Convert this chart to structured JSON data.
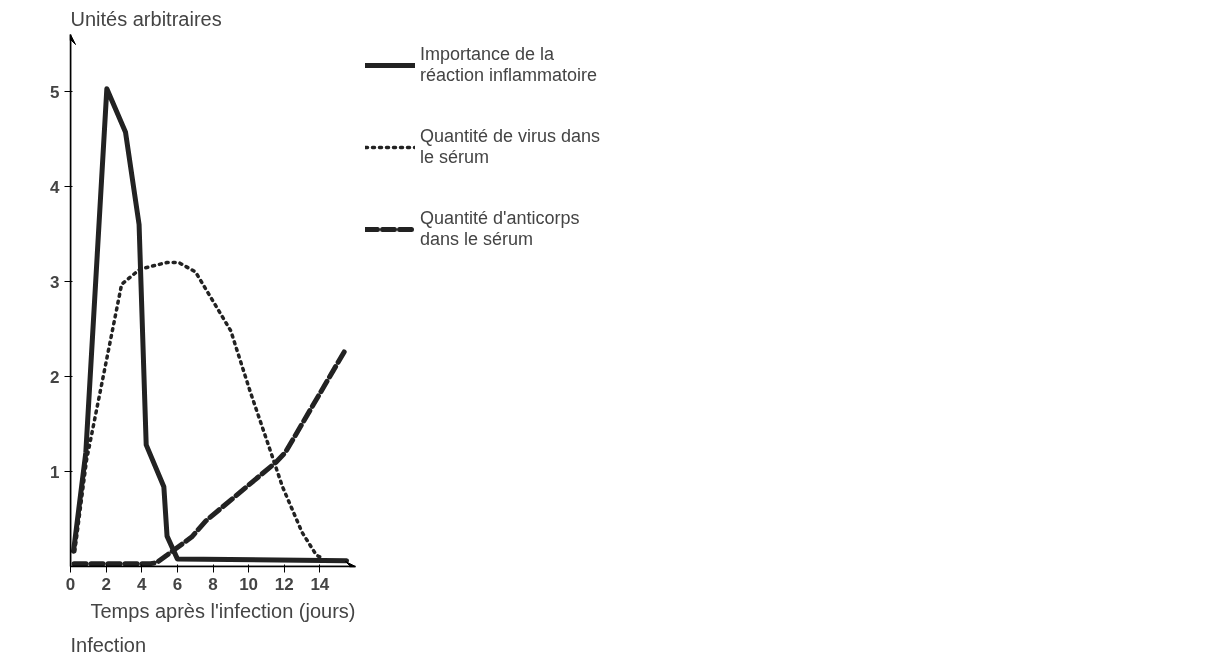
{
  "chart_data": {
    "type": "line",
    "xlabel": "Temps après l'infection (jours)",
    "ylabel": "Unités arbitraires",
    "xlim": [
      0,
      16
    ],
    "ylim": [
      0,
      5.6
    ],
    "xticks": [
      0,
      2,
      4,
      6,
      8,
      10,
      12,
      14
    ],
    "yticks": [
      1,
      2,
      3,
      4,
      5
    ],
    "grid": false,
    "legend": "right",
    "marker": "none",
    "annotations": [
      "Infection"
    ],
    "series": [
      {
        "name": "Importance de la réaction inflammatoire",
        "color": "#222222",
        "line_style": "solid",
        "x": [
          0.17,
          0.86,
          2.04,
          3.09,
          3.85,
          4.25,
          5.24,
          5.42,
          6.0,
          15.5
        ],
        "values": [
          0.16,
          1.2,
          5.03,
          4.57,
          3.6,
          1.28,
          0.84,
          0.32,
          0.08,
          0.06
        ]
      },
      {
        "name": "Quantité de virus dans le sérum",
        "color": "#222222",
        "line_style": "dotted",
        "x": [
          0.24,
          0.9,
          2.87,
          3.9,
          5.42,
          6.08,
          7.02,
          9.0,
          10.09,
          11.18,
          11.9,
          13.0,
          13.8,
          14.2
        ],
        "values": [
          0.16,
          1.12,
          2.97,
          3.13,
          3.2,
          3.2,
          3.1,
          2.48,
          1.84,
          1.24,
          0.84,
          0.36,
          0.12,
          0.08
        ]
      },
      {
        "name": "Quantité d'anticorps dans le sérum",
        "color": "#222222",
        "line_style": "dashed",
        "x": [
          0.2,
          4.5,
          4.84,
          6.0,
          6.8,
          7.6,
          11.55,
          12.06,
          15.4
        ],
        "values": [
          0.03,
          0.03,
          0.04,
          0.2,
          0.31,
          0.48,
          1.1,
          1.2,
          2.27
        ]
      }
    ]
  }
}
